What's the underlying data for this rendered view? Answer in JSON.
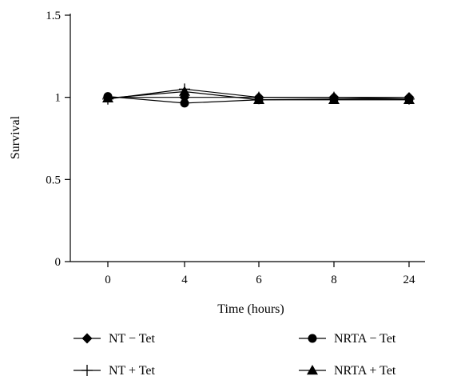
{
  "chart_data": {
    "type": "line",
    "xlabel": "Time (hours)",
    "ylabel": "Survival",
    "categories": [
      "0",
      "4",
      "6",
      "8",
      "24"
    ],
    "ylim": [
      0,
      1.5
    ],
    "yticks": [
      "0",
      "0.5",
      "1",
      "1.5"
    ],
    "grid": false,
    "legend_position": "bottom",
    "series": [
      {
        "name": "NT − Tet",
        "marker": "diamond",
        "values": [
          1.0,
          1.0,
          1.0,
          1.0,
          1.0
        ]
      },
      {
        "name": "NRTA − Tet",
        "marker": "circle",
        "values": [
          1.005,
          0.965,
          0.985,
          0.99,
          0.99
        ]
      },
      {
        "name": "NT + Tet",
        "marker": "plus",
        "values": [
          0.99,
          1.05,
          1.0,
          1.0,
          0.99
        ]
      },
      {
        "name": "NRTA + Tet",
        "marker": "triangle",
        "values": [
          0.995,
          1.035,
          0.985,
          0.985,
          0.985
        ]
      }
    ],
    "color": "#000000"
  }
}
